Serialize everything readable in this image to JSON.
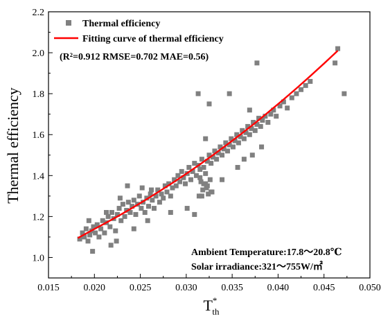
{
  "chart_data": {
    "type": "scatter",
    "xlabel": "T",
    "xlabel_sup": "*",
    "xlabel_sub": "th",
    "ylabel": "Thermal efficiency",
    "xlim": [
      0.015,
      0.05
    ],
    "ylim": [
      0.9,
      2.2
    ],
    "xticks": [
      "0.015",
      "0.020",
      "0.025",
      "0.030",
      "0.035",
      "0.040",
      "0.045",
      "0.050"
    ],
    "xtick_values": [
      0.015,
      0.02,
      0.025,
      0.03,
      0.035,
      0.04,
      0.045,
      0.05
    ],
    "yticks": [
      "1.0",
      "1.2",
      "1.4",
      "1.6",
      "1.8",
      "2.0",
      "2.2"
    ],
    "ytick_values": [
      1.0,
      1.2,
      1.4,
      1.6,
      1.8,
      2.0,
      2.2
    ],
    "grid": false,
    "legend_position": "top-left",
    "series": [
      {
        "name": "Thermal efficiency",
        "kind": "scatter",
        "color": "#808080",
        "x": [
          0.0184,
          0.0187,
          0.0189,
          0.0191,
          0.0193,
          0.0195,
          0.0197,
          0.0199,
          0.0201,
          0.0203,
          0.0205,
          0.0207,
          0.0209,
          0.0211,
          0.0213,
          0.0215,
          0.0217,
          0.0219,
          0.0221,
          0.0223,
          0.0225,
          0.0227,
          0.0229,
          0.0231,
          0.0233,
          0.0235,
          0.0237,
          0.0239,
          0.0241,
          0.0243,
          0.0245,
          0.0247,
          0.0249,
          0.0251,
          0.0253,
          0.0255,
          0.0257,
          0.0259,
          0.0261,
          0.0263,
          0.0265,
          0.0267,
          0.0269,
          0.0271,
          0.0273,
          0.0275,
          0.0277,
          0.0279,
          0.0281,
          0.0283,
          0.0285,
          0.0287,
          0.0289,
          0.0291,
          0.0293,
          0.0295,
          0.0297,
          0.0299,
          0.0301,
          0.0303,
          0.0305,
          0.0307,
          0.0309,
          0.0311,
          0.0313,
          0.0315,
          0.0317,
          0.0319,
          0.0321,
          0.0323,
          0.0325,
          0.0327,
          0.0329,
          0.0331,
          0.0333,
          0.0335,
          0.0337,
          0.0339,
          0.0341,
          0.0343,
          0.0345,
          0.0347,
          0.0349,
          0.0351,
          0.0353,
          0.0355,
          0.0357,
          0.0359,
          0.0361,
          0.0363,
          0.0365,
          0.0367,
          0.0369,
          0.0371,
          0.0373,
          0.0375,
          0.0377,
          0.0379,
          0.0381,
          0.0383,
          0.0386,
          0.0389,
          0.0392,
          0.0395,
          0.0398,
          0.0402,
          0.0406,
          0.041,
          0.0415,
          0.042,
          0.0425,
          0.043,
          0.0435,
          0.0462,
          0.0465,
          0.0472,
          0.0194,
          0.0213,
          0.0228,
          0.0236,
          0.0252,
          0.0262,
          0.0313,
          0.0325,
          0.0347,
          0.0377,
          0.0369,
          0.0321,
          0.0309,
          0.0198,
          0.0218,
          0.0224,
          0.0243,
          0.0258,
          0.0283,
          0.0301,
          0.0317,
          0.0328,
          0.0339,
          0.0356,
          0.0363,
          0.0372,
          0.0382,
          0.0314,
          0.0322,
          0.0319,
          0.0324,
          0.0326,
          0.0318,
          0.0316,
          0.0323,
          0.0327,
          0.0315,
          0.0321
        ],
        "y": [
          1.09,
          1.12,
          1.1,
          1.14,
          1.08,
          1.11,
          1.13,
          1.15,
          1.12,
          1.16,
          1.1,
          1.14,
          1.18,
          1.12,
          1.17,
          1.2,
          1.15,
          1.22,
          1.19,
          1.13,
          1.21,
          1.24,
          1.18,
          1.26,
          1.2,
          1.23,
          1.27,
          1.22,
          1.25,
          1.28,
          1.21,
          1.26,
          1.3,
          1.24,
          1.27,
          1.22,
          1.29,
          1.25,
          1.31,
          1.28,
          1.24,
          1.3,
          1.33,
          1.27,
          1.31,
          1.29,
          1.35,
          1.32,
          1.36,
          1.3,
          1.34,
          1.38,
          1.35,
          1.4,
          1.37,
          1.42,
          1.39,
          1.36,
          1.41,
          1.44,
          1.38,
          1.42,
          1.46,
          1.4,
          1.45,
          1.43,
          1.48,
          1.44,
          1.41,
          1.47,
          1.5,
          1.46,
          1.49,
          1.52,
          1.48,
          1.51,
          1.54,
          1.5,
          1.53,
          1.56,
          1.52,
          1.55,
          1.58,
          1.54,
          1.57,
          1.6,
          1.56,
          1.59,
          1.62,
          1.58,
          1.61,
          1.64,
          1.6,
          1.63,
          1.66,
          1.62,
          1.65,
          1.68,
          1.64,
          1.67,
          1.69,
          1.66,
          1.7,
          1.72,
          1.69,
          1.74,
          1.76,
          1.73,
          1.78,
          1.8,
          1.82,
          1.84,
          1.86,
          1.95,
          2.02,
          1.8,
          1.18,
          1.22,
          1.29,
          1.35,
          1.34,
          1.33,
          1.8,
          1.75,
          1.8,
          1.95,
          1.72,
          1.58,
          1.21,
          1.03,
          1.06,
          1.08,
          1.14,
          1.18,
          1.22,
          1.24,
          1.3,
          1.32,
          1.38,
          1.44,
          1.48,
          1.5,
          1.54,
          1.3,
          1.34,
          1.36,
          1.31,
          1.38,
          1.33,
          1.37,
          1.35,
          1.32,
          1.39,
          1.36
        ]
      },
      {
        "name": "Fitting curve of thermal efficiency",
        "kind": "line",
        "color": "#ff0000",
        "x": [
          0.0182,
          0.0195,
          0.021,
          0.0225,
          0.024,
          0.0255,
          0.027,
          0.0285,
          0.03,
          0.0315,
          0.033,
          0.0345,
          0.036,
          0.0375,
          0.039,
          0.0405,
          0.042,
          0.0435,
          0.045,
          0.0465
        ],
        "y": [
          1.095,
          1.127,
          1.163,
          1.2,
          1.239,
          1.279,
          1.321,
          1.364,
          1.409,
          1.455,
          1.503,
          1.553,
          1.604,
          1.657,
          1.712,
          1.768,
          1.826,
          1.886,
          1.947,
          2.01
        ]
      }
    ],
    "annotations": [
      {
        "text": "(R²=0.912  RMSE=0.702 MAE=0.56)"
      },
      {
        "text": "Ambient Temperature:17.8～20.8℃"
      },
      {
        "text": "Solar irradiance:321～755W/㎡"
      }
    ]
  }
}
